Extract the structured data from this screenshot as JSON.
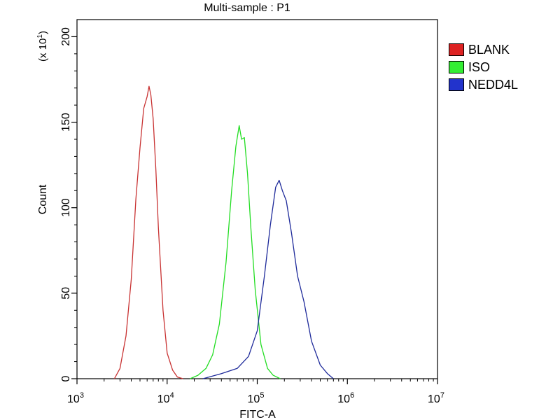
{
  "chart_data": {
    "type": "line",
    "title": "Multi-sample : P1",
    "xlabel": "FITC-A",
    "ylabel": "Count",
    "y_multiplier": "(x 10",
    "y_multiplier_exp": "1",
    "x_scale": "log",
    "xlim": [
      1000,
      10000000
    ],
    "ylim": [
      0,
      210
    ],
    "grid": false,
    "legend_position": "right",
    "x_ticks": [
      {
        "value": 1000,
        "base": "10",
        "exp": "3"
      },
      {
        "value": 10000,
        "base": "10",
        "exp": "4"
      },
      {
        "value": 100000,
        "base": "10",
        "exp": "5"
      },
      {
        "value": 1000000,
        "base": "10",
        "exp": "6"
      },
      {
        "value": 10000000,
        "base": "10",
        "exp": "7"
      }
    ],
    "y_ticks": [
      "0",
      "50",
      "100",
      "150",
      "200"
    ],
    "series": [
      {
        "name": "BLANK",
        "color": "#c83232",
        "x": [
          2600,
          3000,
          3500,
          4000,
          4500,
          5000,
          5500,
          6000,
          6300,
          6600,
          7000,
          7500,
          8000,
          9000,
          10000,
          11500,
          13000,
          15000
        ],
        "y": [
          0,
          6,
          25,
          58,
          105,
          135,
          158,
          165,
          171,
          166,
          152,
          122,
          88,
          40,
          15,
          5,
          1,
          0
        ]
      },
      {
        "name": "ISO",
        "color": "#22dd22",
        "x": [
          18000,
          22000,
          27000,
          32000,
          38000,
          45000,
          52000,
          58000,
          63000,
          67000,
          72000,
          78000,
          85000,
          95000,
          110000,
          130000,
          150000,
          180000
        ],
        "y": [
          0,
          2,
          6,
          14,
          32,
          68,
          110,
          136,
          148,
          140,
          141,
          120,
          88,
          52,
          20,
          6,
          2,
          0
        ]
      },
      {
        "name": "NEDD4L",
        "color": "#1e2a9a",
        "x": [
          25000,
          40000,
          60000,
          80000,
          100000,
          120000,
          140000,
          160000,
          175000,
          190000,
          210000,
          240000,
          280000,
          330000,
          400000,
          500000,
          600000,
          700000
        ],
        "y": [
          0,
          3,
          6,
          13,
          28,
          60,
          90,
          112,
          116,
          110,
          104,
          85,
          60,
          45,
          22,
          8,
          3,
          0
        ]
      }
    ]
  }
}
